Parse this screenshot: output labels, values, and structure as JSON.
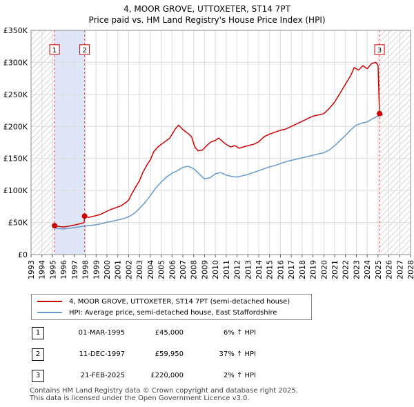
{
  "title": "4, MOOR GROVE, UTTOXETER, ST14 7PT",
  "subtitle": "Price paid vs. HM Land Registry's House Price Index (HPI)",
  "chart_data": {
    "type": "line",
    "xlim": [
      1993,
      2028
    ],
    "ylim": [
      0,
      350000
    ],
    "x_ticks": [
      "1993",
      "1994",
      "1995",
      "1996",
      "1997",
      "1998",
      "1999",
      "2000",
      "2001",
      "2002",
      "2003",
      "2004",
      "2005",
      "2006",
      "2007",
      "2008",
      "2009",
      "2010",
      "2011",
      "2012",
      "2013",
      "2014",
      "2015",
      "2016",
      "2017",
      "2018",
      "2019",
      "2020",
      "2021",
      "2022",
      "2023",
      "2024",
      "2025",
      "2026",
      "2027",
      "2028"
    ],
    "y_ticks": [
      {
        "value": 0,
        "label": "£0"
      },
      {
        "value": 50000,
        "label": "£50K"
      },
      {
        "value": 100000,
        "label": "£100K"
      },
      {
        "value": 150000,
        "label": "£150K"
      },
      {
        "value": 200000,
        "label": "£200K"
      },
      {
        "value": 250000,
        "label": "£250K"
      },
      {
        "value": 300000,
        "label": "£300K"
      },
      {
        "value": 350000,
        "label": "£350K"
      }
    ],
    "grid": true,
    "hatched_ranges": [
      [
        1993,
        1995.17
      ],
      [
        2025.14,
        2028
      ]
    ],
    "shaded_range": [
      1995.17,
      1997.94
    ],
    "series": [
      {
        "name": "4, MOOR GROVE, UTTOXETER, ST14 7PT (semi-detached house)",
        "color": "#cc0000",
        "points": [
          [
            1995.17,
            45000
          ],
          [
            1995.5,
            44000
          ],
          [
            1996.0,
            43000
          ],
          [
            1996.5,
            44500
          ],
          [
            1997.0,
            46000
          ],
          [
            1997.5,
            48000
          ],
          [
            1997.9,
            50000
          ],
          [
            1997.94,
            59950
          ],
          [
            1998.3,
            58000
          ],
          [
            1998.8,
            60000
          ],
          [
            1999.3,
            62000
          ],
          [
            1999.8,
            66000
          ],
          [
            2000.3,
            70000
          ],
          [
            2000.8,
            73000
          ],
          [
            2001.3,
            76000
          ],
          [
            2001.8,
            82000
          ],
          [
            2002.0,
            85000
          ],
          [
            2002.3,
            95000
          ],
          [
            2002.7,
            107000
          ],
          [
            2003.0,
            115000
          ],
          [
            2003.3,
            128000
          ],
          [
            2003.7,
            140000
          ],
          [
            2004.0,
            148000
          ],
          [
            2004.3,
            160000
          ],
          [
            2004.7,
            168000
          ],
          [
            2005.0,
            172000
          ],
          [
            2005.5,
            178000
          ],
          [
            2005.8,
            182000
          ],
          [
            2006.3,
            196000
          ],
          [
            2006.6,
            202000
          ],
          [
            2007.0,
            195000
          ],
          [
            2007.4,
            190000
          ],
          [
            2007.8,
            184000
          ],
          [
            2008.1,
            168000
          ],
          [
            2008.4,
            162000
          ],
          [
            2008.8,
            163000
          ],
          [
            2009.2,
            170000
          ],
          [
            2009.6,
            176000
          ],
          [
            2010.0,
            178000
          ],
          [
            2010.3,
            182000
          ],
          [
            2010.7,
            176000
          ],
          [
            2011.0,
            172000
          ],
          [
            2011.4,
            168000
          ],
          [
            2011.8,
            170000
          ],
          [
            2012.2,
            166000
          ],
          [
            2012.6,
            168000
          ],
          [
            2013.0,
            170000
          ],
          [
            2013.5,
            172000
          ],
          [
            2014.0,
            176000
          ],
          [
            2014.5,
            184000
          ],
          [
            2015.0,
            188000
          ],
          [
            2015.5,
            191000
          ],
          [
            2016.0,
            194000
          ],
          [
            2016.5,
            196000
          ],
          [
            2017.0,
            200000
          ],
          [
            2017.5,
            204000
          ],
          [
            2018.0,
            208000
          ],
          [
            2018.5,
            212000
          ],
          [
            2019.0,
            216000
          ],
          [
            2019.5,
            218000
          ],
          [
            2020.0,
            220000
          ],
          [
            2020.5,
            228000
          ],
          [
            2021.0,
            238000
          ],
          [
            2021.5,
            252000
          ],
          [
            2022.0,
            266000
          ],
          [
            2022.5,
            280000
          ],
          [
            2022.8,
            292000
          ],
          [
            2023.2,
            288000
          ],
          [
            2023.6,
            295000
          ],
          [
            2024.0,
            290000
          ],
          [
            2024.4,
            298000
          ],
          [
            2024.8,
            300000
          ],
          [
            2025.0,
            295000
          ],
          [
            2025.14,
            220000
          ],
          [
            2025.3,
            222000
          ],
          [
            2025.4,
            218000
          ]
        ]
      },
      {
        "name": "HPI: Average price, semi-detached house, East Staffordshire",
        "color": "#6699cc",
        "points": [
          [
            1995.0,
            42000
          ],
          [
            1995.5,
            40500
          ],
          [
            1996.0,
            40000
          ],
          [
            1996.5,
            41000
          ],
          [
            1997.0,
            42000
          ],
          [
            1997.5,
            43500
          ],
          [
            1998.0,
            44500
          ],
          [
            1998.5,
            45500
          ],
          [
            1999.0,
            46500
          ],
          [
            1999.5,
            48000
          ],
          [
            2000.0,
            50500
          ],
          [
            2000.5,
            52000
          ],
          [
            2001.0,
            54000
          ],
          [
            2001.5,
            56000
          ],
          [
            2002.0,
            59000
          ],
          [
            2002.5,
            64000
          ],
          [
            2003.0,
            72000
          ],
          [
            2003.5,
            81000
          ],
          [
            2004.0,
            92000
          ],
          [
            2004.5,
            104000
          ],
          [
            2005.0,
            113000
          ],
          [
            2005.5,
            121000
          ],
          [
            2006.0,
            127000
          ],
          [
            2006.5,
            131000
          ],
          [
            2007.0,
            136000
          ],
          [
            2007.5,
            138000
          ],
          [
            2008.0,
            134000
          ],
          [
            2008.5,
            126000
          ],
          [
            2009.0,
            118000
          ],
          [
            2009.5,
            120000
          ],
          [
            2010.0,
            126000
          ],
          [
            2010.5,
            128000
          ],
          [
            2011.0,
            124000
          ],
          [
            2011.5,
            122000
          ],
          [
            2012.0,
            121000
          ],
          [
            2012.5,
            123000
          ],
          [
            2013.0,
            125000
          ],
          [
            2013.5,
            128000
          ],
          [
            2014.0,
            131000
          ],
          [
            2014.5,
            134000
          ],
          [
            2015.0,
            137000
          ],
          [
            2015.5,
            139000
          ],
          [
            2016.0,
            142000
          ],
          [
            2016.5,
            145000
          ],
          [
            2017.0,
            147000
          ],
          [
            2017.5,
            149000
          ],
          [
            2018.0,
            151000
          ],
          [
            2018.5,
            153000
          ],
          [
            2019.0,
            155000
          ],
          [
            2019.5,
            157000
          ],
          [
            2020.0,
            159000
          ],
          [
            2020.5,
            163000
          ],
          [
            2021.0,
            170000
          ],
          [
            2021.5,
            178000
          ],
          [
            2022.0,
            186000
          ],
          [
            2022.5,
            195000
          ],
          [
            2023.0,
            202000
          ],
          [
            2023.5,
            205000
          ],
          [
            2024.0,
            207000
          ],
          [
            2024.5,
            212000
          ],
          [
            2025.0,
            216000
          ],
          [
            2025.4,
            218000
          ]
        ]
      }
    ],
    "sales": [
      {
        "id": "1",
        "x": 1995.17,
        "y": 45000
      },
      {
        "id": "2",
        "x": 1997.94,
        "y": 59950
      },
      {
        "id": "3",
        "x": 2025.14,
        "y": 220000
      }
    ],
    "marker_label_value": 320000
  },
  "legend": [
    {
      "label": "4, MOOR GROVE, UTTOXETER, ST14 7PT (semi-detached house)",
      "color": "#cc0000"
    },
    {
      "label": "HPI: Average price, semi-detached house, East Staffordshire",
      "color": "#6699cc"
    }
  ],
  "transactions": [
    {
      "id": "1",
      "date": "01-MAR-1995",
      "price": "£45,000",
      "hpi": "6% ↑ HPI"
    },
    {
      "id": "2",
      "date": "11-DEC-1997",
      "price": "£59,950",
      "hpi": "37% ↑ HPI"
    },
    {
      "id": "3",
      "date": "21-FEB-2025",
      "price": "£220,000",
      "hpi": "2% ↑ HPI"
    }
  ],
  "footer": {
    "line1": "Contains HM Land Registry data © Crown copyright and database right 2025.",
    "line2": "This data is licensed under the Open Government Licence v3.0."
  }
}
